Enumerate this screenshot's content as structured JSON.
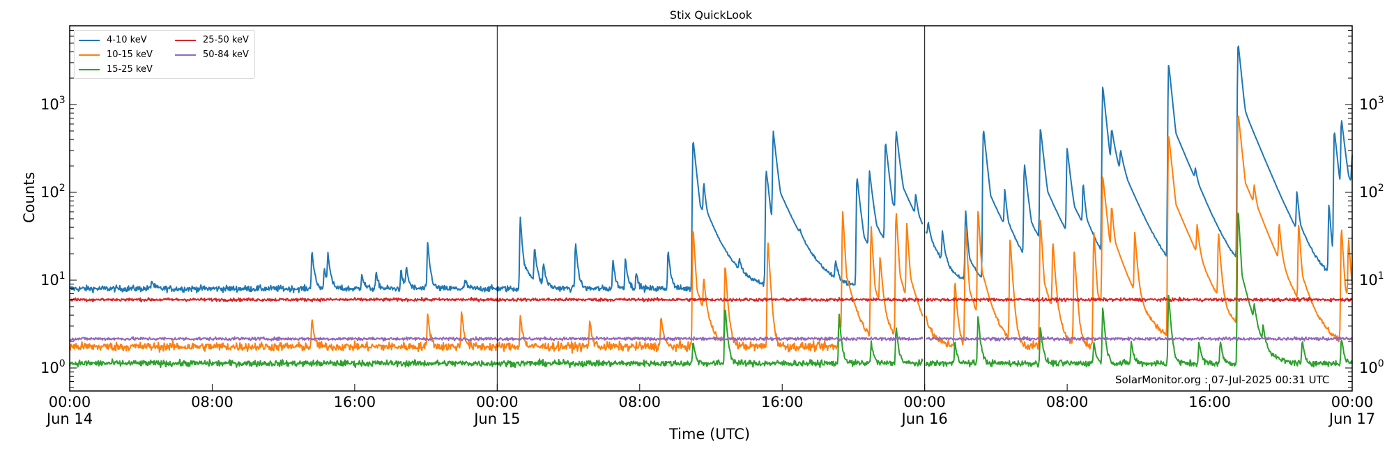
{
  "chart_data": {
    "type": "line",
    "title": "Stix QuickLook",
    "xlabel": "Time (UTC)",
    "ylabel": "Counts",
    "yscale": "log",
    "ylim": [
      0.55,
      8500
    ],
    "xlim": [
      "2025-06-14 00:00",
      "2025-06-17 00:00"
    ],
    "x_ticks": [
      {
        "hour": 0,
        "label": "00:00",
        "sublabel": "Jun 14"
      },
      {
        "hour": 8,
        "label": "08:00",
        "sublabel": ""
      },
      {
        "hour": 16,
        "label": "16:00",
        "sublabel": ""
      },
      {
        "hour": 24,
        "label": "00:00",
        "sublabel": "Jun 15"
      },
      {
        "hour": 32,
        "label": "08:00",
        "sublabel": ""
      },
      {
        "hour": 40,
        "label": "16:00",
        "sublabel": ""
      },
      {
        "hour": 48,
        "label": "00:00",
        "sublabel": "Jun 16"
      },
      {
        "hour": 56,
        "label": "08:00",
        "sublabel": ""
      },
      {
        "hour": 64,
        "label": "16:00",
        "sublabel": ""
      },
      {
        "hour": 72,
        "label": "00:00",
        "sublabel": "Jun 17"
      }
    ],
    "y_ticks": [
      {
        "value": 1,
        "base": "10",
        "exp": "0"
      },
      {
        "value": 10,
        "base": "10",
        "exp": "1"
      },
      {
        "value": 100,
        "base": "10",
        "exp": "2"
      },
      {
        "value": 1000,
        "base": "10",
        "exp": "3"
      }
    ],
    "day_boundaries_hours": [
      24,
      48
    ],
    "legend_position": "upper left",
    "grid": false,
    "series": [
      {
        "name": "4-10 keV",
        "color": "#1f77b4",
        "baseline": 8.0,
        "noise": 0.05,
        "peaks_hours_value": [
          [
            4.6,
            10
          ],
          [
            13.6,
            22
          ],
          [
            14.3,
            14
          ],
          [
            14.5,
            20
          ],
          [
            16.4,
            12
          ],
          [
            17.2,
            12
          ],
          [
            18.6,
            13
          ],
          [
            18.9,
            14
          ],
          [
            20.1,
            27
          ],
          [
            22.2,
            10
          ],
          [
            25.3,
            52
          ],
          [
            26.1,
            22
          ],
          [
            26.6,
            15
          ],
          [
            28.4,
            27
          ],
          [
            30.5,
            17
          ],
          [
            31.2,
            18
          ],
          [
            31.8,
            12
          ],
          [
            33.6,
            22
          ],
          [
            35.0,
            400
          ],
          [
            35.6,
            80
          ],
          [
            37.6,
            12
          ],
          [
            39.2,
            14
          ],
          [
            41.0,
            12
          ],
          [
            43.0,
            14
          ],
          [
            46.4,
            450
          ],
          [
            48.2,
            22
          ],
          [
            49.0,
            28
          ],
          [
            50.3,
            60
          ],
          [
            51.3,
            530
          ],
          [
            54.5,
            520
          ],
          [
            56.0,
            290
          ],
          [
            58.0,
            1600
          ],
          [
            58.5,
            300
          ],
          [
            61.7,
            2900
          ],
          [
            65.6,
            5000
          ],
          [
            66.0,
            60
          ],
          [
            68.9,
            75
          ],
          [
            71.0,
            500
          ],
          [
            71.4,
            600
          ],
          [
            72.0,
            150
          ],
          [
            74.0,
            90
          ],
          [
            77.8,
            75
          ]
        ],
        "extra_spikes_hours_value": [
          [
            39.1,
            180
          ],
          [
            39.5,
            470
          ],
          [
            44.2,
            150
          ],
          [
            44.9,
            160
          ],
          [
            45.8,
            360
          ],
          [
            47.5,
            50
          ],
          [
            52.5,
            75
          ],
          [
            53.6,
            200
          ],
          [
            56.9,
            95
          ],
          [
            59.0,
            130
          ],
          [
            63.2,
            55
          ],
          [
            70.7,
            70
          ]
        ]
      },
      {
        "name": "10-15 keV",
        "color": "#ff7f0e",
        "baseline": 1.75,
        "noise": 0.07,
        "peaks_hours_value": [
          [
            13.6,
            3.5
          ],
          [
            20.1,
            4.2
          ],
          [
            25.3,
            4
          ],
          [
            29.2,
            3.5
          ],
          [
            33.2,
            4
          ],
          [
            35.0,
            40
          ],
          [
            35.6,
            8
          ],
          [
            39.2,
            28
          ],
          [
            43.2,
            4
          ],
          [
            46.4,
            60
          ],
          [
            48.0,
            3
          ],
          [
            49.7,
            10
          ],
          [
            50.3,
            40
          ],
          [
            51.0,
            62
          ],
          [
            54.5,
            50
          ],
          [
            56.4,
            22
          ],
          [
            58.0,
            150
          ],
          [
            58.5,
            50
          ],
          [
            61.7,
            450
          ],
          [
            65.6,
            800
          ],
          [
            66.5,
            50
          ],
          [
            69.0,
            40
          ],
          [
            71.4,
            40
          ],
          [
            72.2,
            20
          ]
        ],
        "extra_spikes_hours_value": [
          [
            22.0,
            4.5
          ],
          [
            36.8,
            15
          ],
          [
            43.4,
            60
          ],
          [
            45.0,
            40
          ],
          [
            45.5,
            15
          ],
          [
            47.0,
            40
          ],
          [
            52.8,
            30
          ],
          [
            55.2,
            25
          ],
          [
            57.5,
            35
          ],
          [
            59.8,
            30
          ],
          [
            63.3,
            25
          ],
          [
            64.5,
            30
          ],
          [
            67.9,
            30
          ],
          [
            71.8,
            25
          ]
        ]
      },
      {
        "name": "15-25 keV",
        "color": "#2ca02c",
        "baseline": 1.13,
        "noise": 0.05,
        "peaks_hours_value": [
          [
            35.0,
            2
          ],
          [
            36.8,
            5
          ],
          [
            43.2,
            4
          ],
          [
            46.4,
            3
          ],
          [
            58.0,
            5
          ],
          [
            61.7,
            7
          ],
          [
            65.6,
            65
          ],
          [
            66.5,
            3
          ],
          [
            71.4,
            2.2
          ]
        ],
        "extra_spikes_hours_value": [
          [
            45.0,
            2
          ],
          [
            49.7,
            2
          ],
          [
            51.0,
            4
          ],
          [
            54.5,
            3
          ],
          [
            57.5,
            2
          ],
          [
            59.6,
            2
          ],
          [
            63.4,
            2
          ],
          [
            64.6,
            2
          ],
          [
            67.0,
            2.2
          ],
          [
            69.2,
            2
          ]
        ]
      },
      {
        "name": "25-50 keV",
        "color": "#d62728",
        "baseline": 6.0,
        "noise": 0.025,
        "peaks_hours_value": [],
        "extra_spikes_hours_value": []
      },
      {
        "name": "50-84 keV",
        "color": "#9467bd",
        "baseline": 2.15,
        "noise": 0.025,
        "peaks_hours_value": [],
        "extra_spikes_hours_value": []
      }
    ],
    "annotation": "SolarMonitor.org : 07-Jul-2025 00:31 UTC"
  }
}
